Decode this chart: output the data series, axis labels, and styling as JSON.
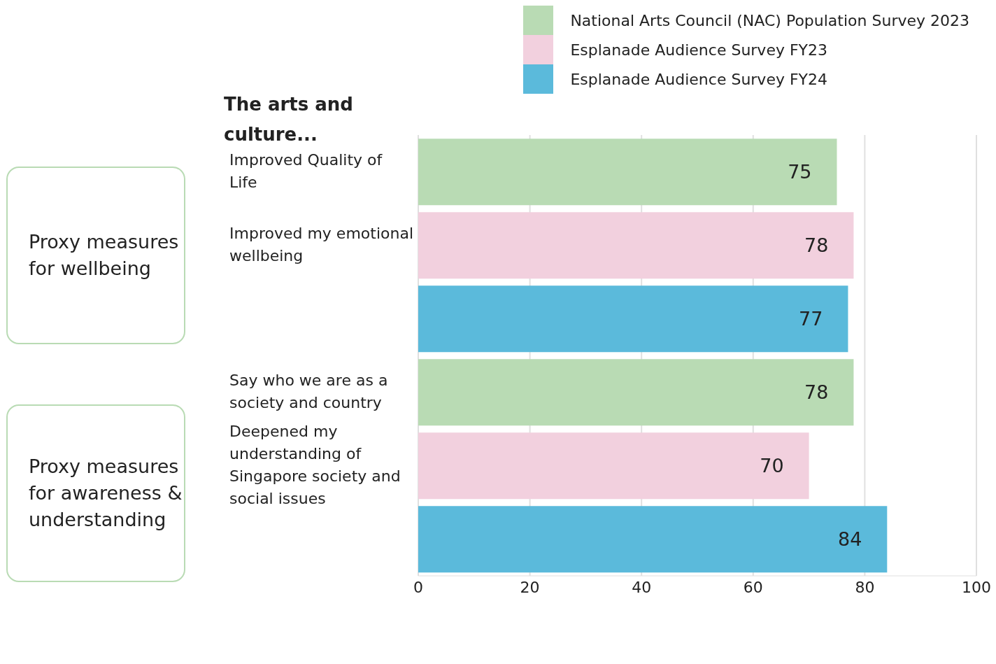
{
  "chart_data": {
    "type": "bar",
    "orientation": "horizontal",
    "stacked": true,
    "title": "The arts and culture...",
    "categories": [
      "Improved Quality of Life",
      "Improved my emotional wellbeing",
      null,
      "Say who we are as a society and country",
      "Deepened my understanding of Singapore society and social issues",
      null
    ],
    "series": [
      {
        "name": "National Arts Council (NAC) Population Survey 2023",
        "color": "#b9dbb4",
        "values": [
          75,
          null,
          null,
          78,
          null,
          null
        ]
      },
      {
        "name": "Esplanade Audience Survey FY23",
        "color": "#f2d0de",
        "values": [
          null,
          78,
          null,
          null,
          70,
          null
        ]
      },
      {
        "name": "Esplanade Audience Survey FY24",
        "color": "#5bbadb",
        "values": [
          null,
          null,
          77,
          null,
          null,
          84
        ]
      }
    ],
    "xlim": [
      0,
      100
    ],
    "xticks": [
      0,
      20,
      40,
      60,
      80,
      100
    ],
    "grid": "x",
    "legend": "top right",
    "data_labels": true,
    "annotations": [
      "Proxy measures for wellbeing",
      "Proxy measures for awareness & understanding"
    ]
  }
}
